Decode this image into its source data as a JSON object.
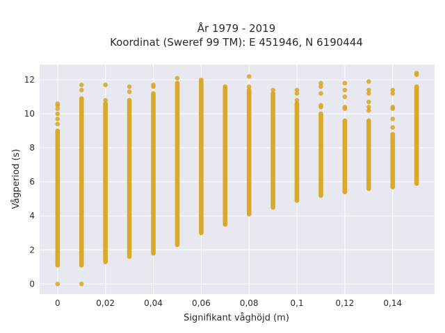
{
  "chart_data": {
    "type": "scatter",
    "title": [
      "År 1979 - 2019",
      "Koordinat (Sweref 99 TM): E 451946, N 6190444"
    ],
    "xlabel": "Signifikant våghöjd (m)",
    "ylabel": "Vågperiod (s)",
    "xlim": [
      -0.0075,
      0.1575
    ],
    "ylim": [
      -0.6,
      12.9
    ],
    "x_ticks": [
      0,
      0.02,
      0.04,
      0.06,
      0.08,
      0.1,
      0.12,
      0.14
    ],
    "x_tick_labels": [
      "0",
      "0,02",
      "0,04",
      "0,06",
      "0,08",
      "0,1",
      "0,12",
      "0,14"
    ],
    "y_ticks": [
      0,
      2,
      4,
      6,
      8,
      10,
      12
    ],
    "y_tick_labels": [
      "0",
      "2",
      "4",
      "6",
      "8",
      "10",
      "12"
    ],
    "grid": true,
    "colors": {
      "point": "#D9A521",
      "plot_bg": "#E8E8F0",
      "grid": "#ffffff"
    },
    "columns": [
      {
        "x": 0.0,
        "min": 1.1,
        "max": 9.0,
        "outliers": [
          0.0,
          9.4,
          9.7,
          10.0,
          10.3,
          10.5,
          10.6
        ]
      },
      {
        "x": 0.01,
        "min": 1.1,
        "max": 10.9,
        "outliers": [
          0.0,
          11.4,
          11.7
        ]
      },
      {
        "x": 0.02,
        "min": 1.3,
        "max": 10.6,
        "outliers": [
          10.8,
          11.7
        ]
      },
      {
        "x": 0.03,
        "min": 1.6,
        "max": 10.8,
        "outliers": [
          11.3,
          11.6
        ]
      },
      {
        "x": 0.04,
        "min": 1.8,
        "max": 11.2,
        "outliers": [
          11.6,
          11.7
        ]
      },
      {
        "x": 0.05,
        "min": 2.3,
        "max": 11.8,
        "outliers": [
          12.1
        ]
      },
      {
        "x": 0.06,
        "min": 3.0,
        "max": 11.9,
        "outliers": [
          12.0
        ]
      },
      {
        "x": 0.07,
        "min": 3.5,
        "max": 11.5,
        "outliers": [
          11.6
        ]
      },
      {
        "x": 0.08,
        "min": 4.1,
        "max": 11.4,
        "outliers": [
          11.6,
          12.2
        ]
      },
      {
        "x": 0.09,
        "min": 4.5,
        "max": 11.2,
        "outliers": [
          11.4
        ]
      },
      {
        "x": 0.1,
        "min": 4.9,
        "max": 10.6,
        "outliers": [
          10.8,
          11.2,
          11.4
        ]
      },
      {
        "x": 0.11,
        "min": 5.2,
        "max": 10.0,
        "outliers": [
          10.4,
          10.5,
          11.2,
          11.6,
          11.8
        ]
      },
      {
        "x": 0.12,
        "min": 5.4,
        "max": 9.6,
        "outliers": [
          10.3,
          10.4,
          11.0,
          11.4,
          11.8
        ]
      },
      {
        "x": 0.13,
        "min": 5.6,
        "max": 9.6,
        "outliers": [
          10.2,
          10.4,
          10.7,
          11.2,
          11.4,
          11.9
        ]
      },
      {
        "x": 0.14,
        "min": 5.7,
        "max": 8.8,
        "outliers": [
          9.2,
          9.7,
          10.3,
          10.4,
          11.2,
          11.4
        ]
      },
      {
        "x": 0.15,
        "min": 5.9,
        "max": 11.6,
        "outliers": [
          12.3,
          12.4
        ]
      }
    ]
  }
}
